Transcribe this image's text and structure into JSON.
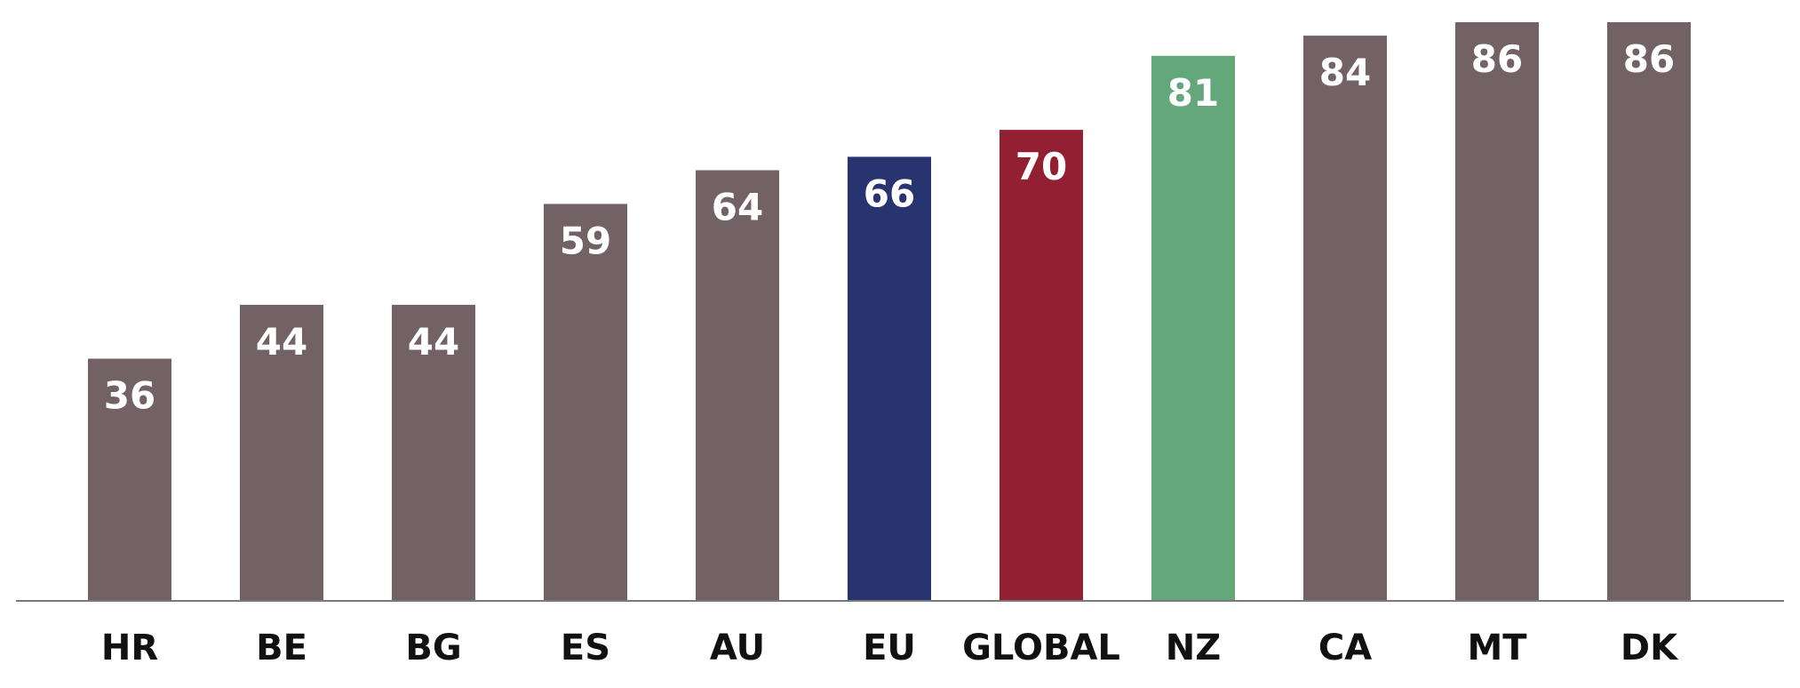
{
  "chart_data": {
    "type": "bar",
    "title": "",
    "xlabel": "",
    "ylabel": "",
    "categories": [
      "HR",
      "BE",
      "BG",
      "ES",
      "AU",
      "EU",
      "GLOBAL",
      "NZ",
      "CA",
      "MT",
      "DK"
    ],
    "values": [
      36,
      44,
      44,
      59,
      64,
      66,
      70,
      81,
      84,
      86,
      86
    ],
    "bar_colors": [
      "#726266",
      "#726266",
      "#726266",
      "#726266",
      "#726266",
      "#283470",
      "#921F32",
      "#64A77A",
      "#726266",
      "#726266",
      "#726266"
    ],
    "ylim": [
      0,
      86
    ],
    "grid": false,
    "data_labels": true
  }
}
